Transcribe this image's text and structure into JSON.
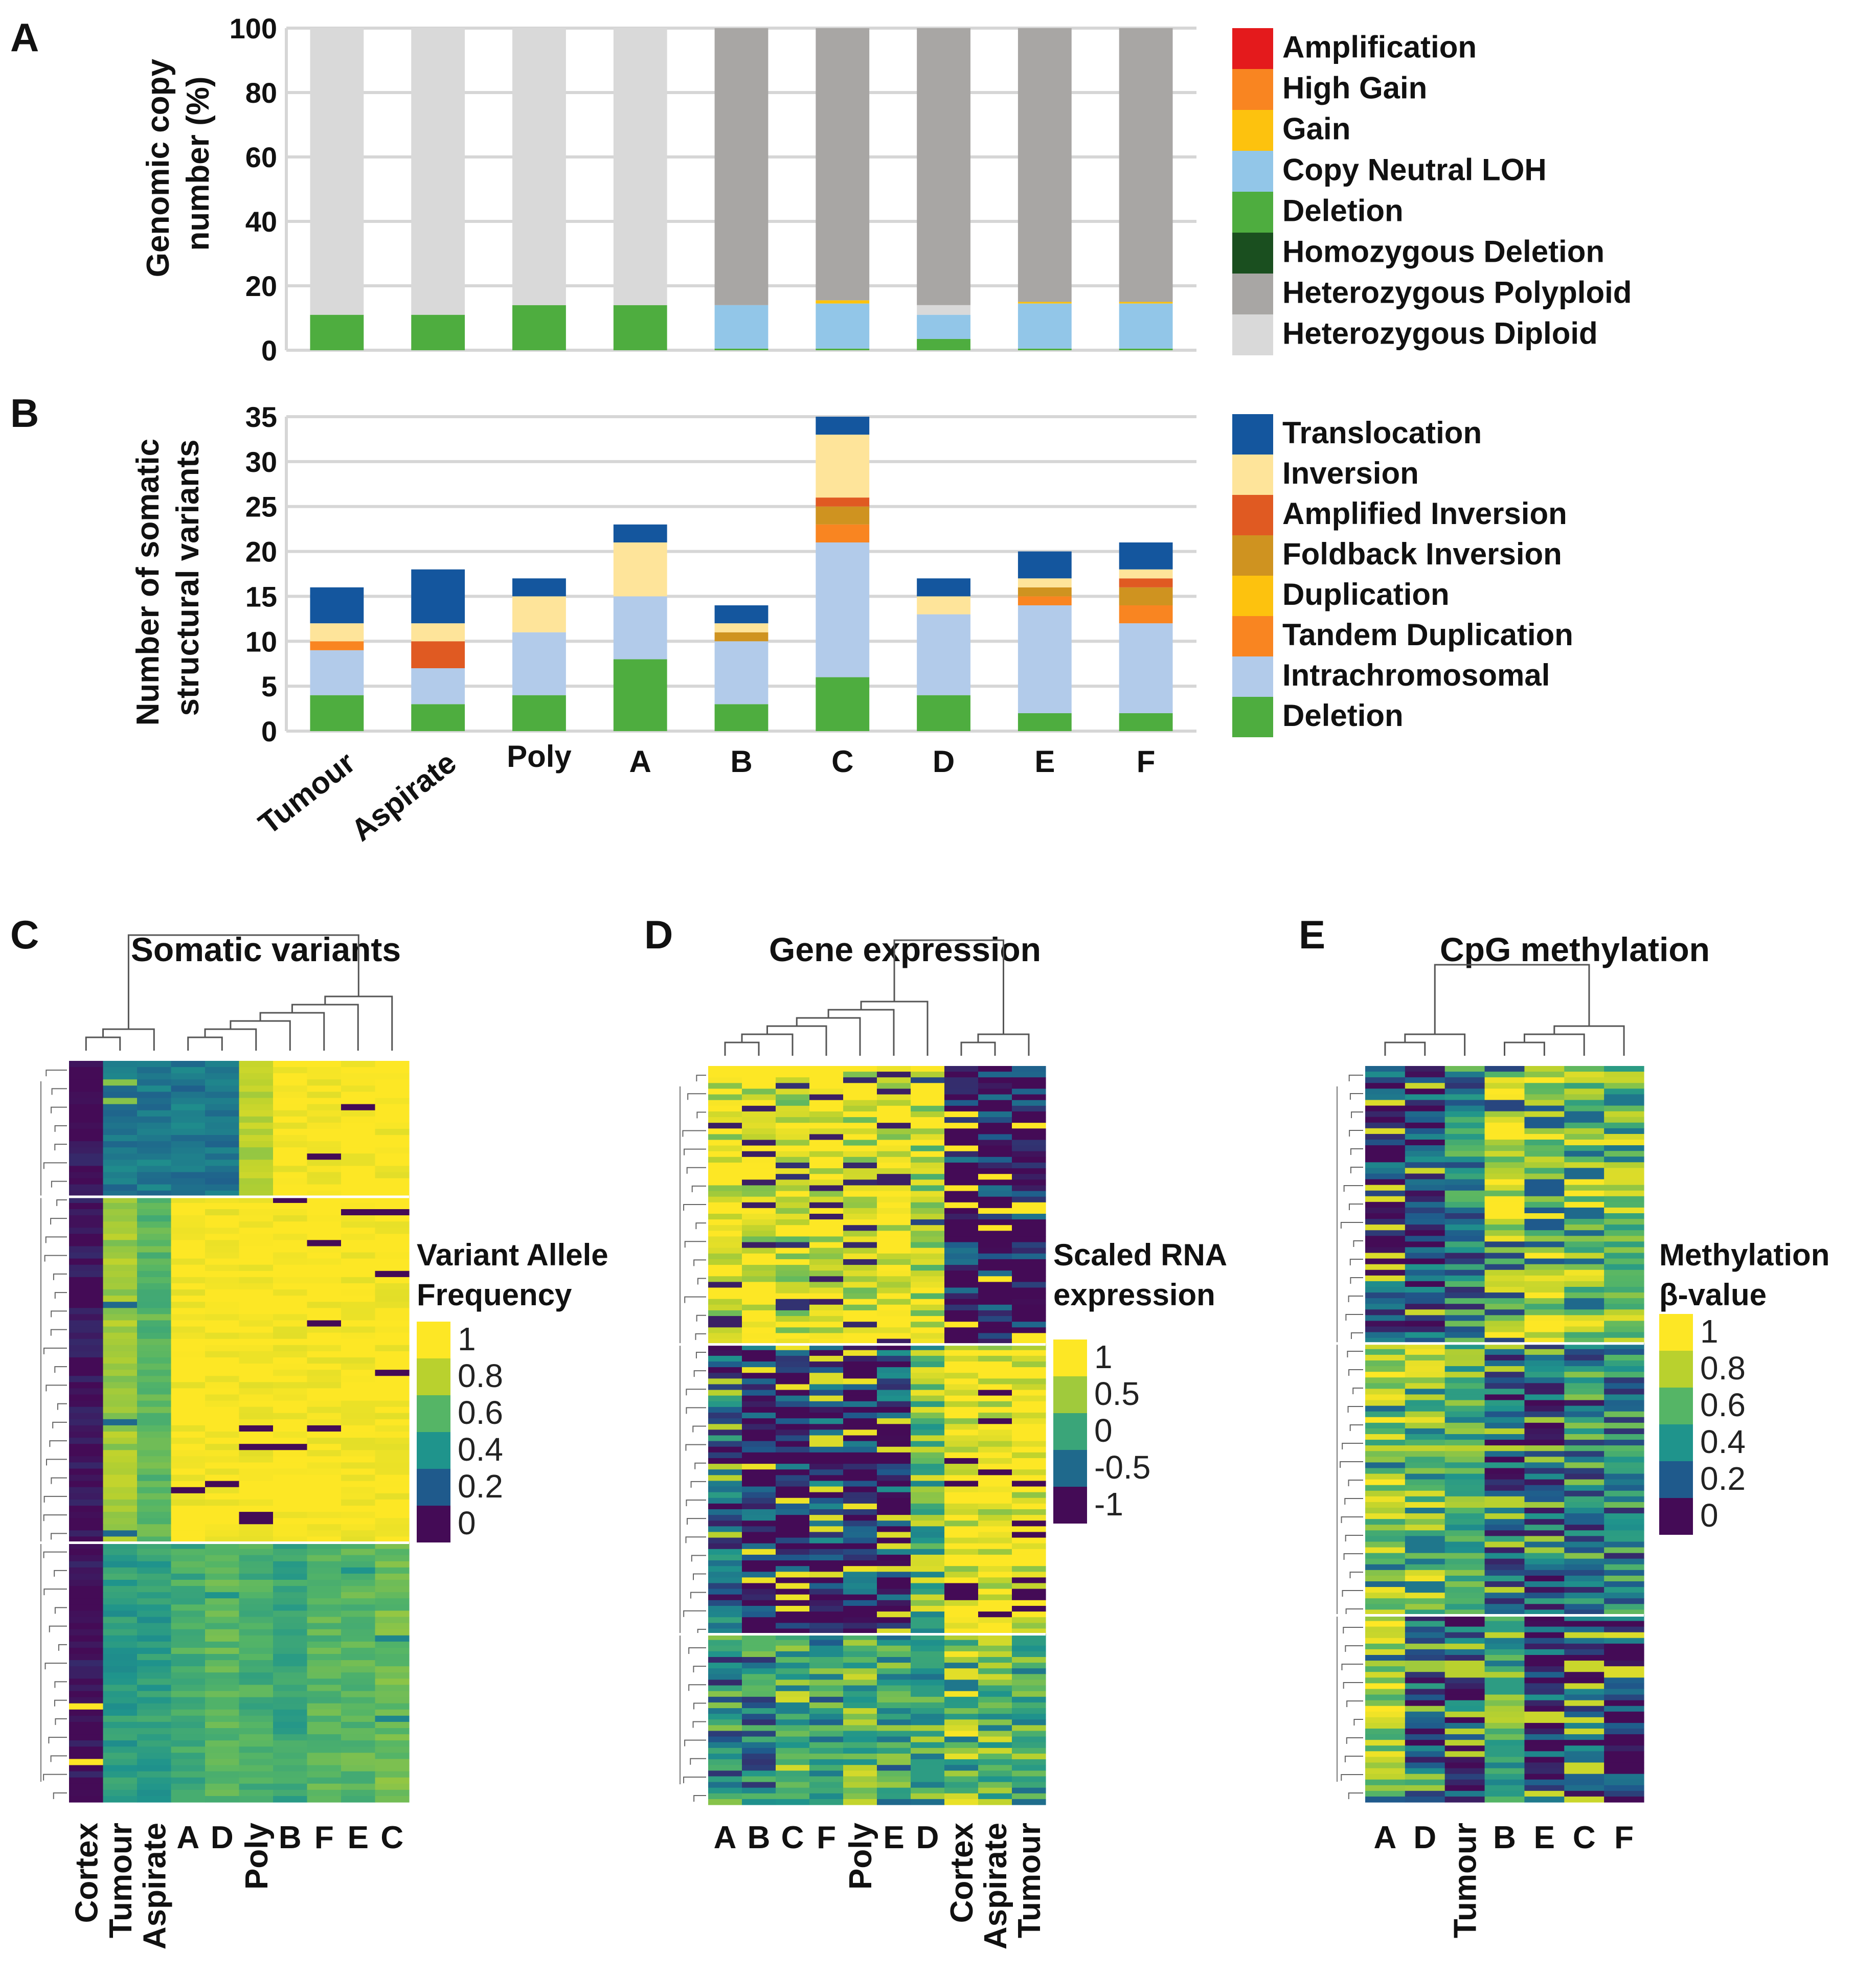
{
  "panel_labels": [
    "A",
    "B",
    "C",
    "D",
    "E"
  ],
  "colors": {
    "amplification": "#e41a1c",
    "high_gain": "#f98521",
    "gain": "#fdc20e",
    "copy_neutral_loh": "#92c6e8",
    "deletion": "#4ead3f",
    "homozygous_deletion": "#1a4f1f",
    "heterozygous_polyploid": "#a8a6a4",
    "heterozygous_diploid": "#d9d9d9",
    "translocation": "#14569e",
    "inversion": "#fee49a",
    "amplified_inversion": "#e05a22",
    "foldback_inversion": "#cf9320",
    "duplication": "#fdc20e",
    "tandem_duplication": "#f98521",
    "intrachromosomal": "#b2cbea",
    "grid": "#d6d6d6"
  },
  "chart_data": [
    {
      "type": "bar",
      "panel": "A",
      "stacked": true,
      "title": "",
      "xlabel": "",
      "ylabel": "Genomic copy number (%)",
      "ylim": [
        0,
        100
      ],
      "yticks": [
        0,
        20,
        40,
        60,
        80,
        100
      ],
      "grid": true,
      "legend_position": "right",
      "categories": [
        "Tumour",
        "Aspirate",
        "Poly",
        "A",
        "B",
        "C",
        "D",
        "E",
        "F"
      ],
      "series": [
        {
          "name": "Deletion",
          "color_key": "deletion",
          "values": [
            11,
            11,
            14,
            14,
            0.5,
            0.5,
            3.5,
            0.5,
            0.5
          ]
        },
        {
          "name": "Copy Neutral LOH",
          "color_key": "copy_neutral_loh",
          "values": [
            0,
            0,
            0,
            0,
            13.5,
            14,
            7.5,
            14,
            14
          ]
        },
        {
          "name": "Gain",
          "color_key": "gain",
          "values": [
            0,
            0,
            0,
            0,
            0,
            1,
            0,
            0.5,
            0.5
          ]
        },
        {
          "name": "Heterozygous Diploid",
          "color_key": "heterozygous_diploid",
          "values": [
            89,
            89,
            86,
            86,
            0,
            0,
            3,
            0,
            0
          ]
        },
        {
          "name": "Heterozygous Polyploid",
          "color_key": "heterozygous_polyploid",
          "values": [
            0,
            0,
            0,
            0,
            86,
            84.5,
            86,
            85,
            85
          ]
        }
      ],
      "legend": [
        "Amplification",
        "High Gain",
        "Gain",
        "Copy Neutral LOH",
        "Deletion",
        "Homozygous Deletion",
        "Heterozygous Polyploid",
        "Heterozygous Diploid"
      ],
      "legend_color_keys": [
        "amplification",
        "high_gain",
        "gain",
        "copy_neutral_loh",
        "deletion",
        "homozygous_deletion",
        "heterozygous_polyploid",
        "heterozygous_diploid"
      ]
    },
    {
      "type": "bar",
      "panel": "B",
      "stacked": true,
      "title": "",
      "xlabel": "",
      "ylabel": "Number of somatic structural variants",
      "ylim": [
        0,
        35
      ],
      "yticks": [
        0,
        5,
        10,
        15,
        20,
        25,
        30,
        35
      ],
      "grid": true,
      "legend_position": "right",
      "categories": [
        "Tumour",
        "Aspirate",
        "Poly",
        "A",
        "B",
        "C",
        "D",
        "E",
        "F"
      ],
      "series": [
        {
          "name": "Deletion",
          "color_key": "deletion",
          "values": [
            4,
            3,
            4,
            8,
            3,
            6,
            4,
            2,
            2
          ]
        },
        {
          "name": "Intrachromosomal",
          "color_key": "intrachromosomal",
          "values": [
            5,
            4,
            7,
            7,
            7,
            15,
            9,
            12,
            10
          ]
        },
        {
          "name": "Tandem Duplication",
          "color_key": "tandem_duplication",
          "values": [
            1,
            0,
            0,
            0,
            0,
            2,
            0,
            1,
            2
          ]
        },
        {
          "name": "Duplication",
          "color_key": "duplication",
          "values": [
            0,
            0,
            0,
            0,
            0,
            0,
            0,
            0,
            0
          ]
        },
        {
          "name": "Foldback Inversion",
          "color_key": "foldback_inversion",
          "values": [
            0,
            0,
            0,
            0,
            1,
            2,
            0,
            1,
            2
          ]
        },
        {
          "name": "Amplified Inversion",
          "color_key": "amplified_inversion",
          "values": [
            0,
            3,
            0,
            0,
            0,
            1,
            0,
            0,
            1
          ]
        },
        {
          "name": "Inversion",
          "color_key": "inversion",
          "values": [
            2,
            2,
            4,
            6,
            1,
            7,
            2,
            1,
            1
          ]
        },
        {
          "name": "Translocation",
          "color_key": "translocation",
          "values": [
            4,
            6,
            2,
            2,
            2,
            2,
            2,
            3,
            3
          ]
        }
      ],
      "legend": [
        "Translocation",
        "Inversion",
        "Amplified Inversion",
        "Foldback Inversion",
        "Duplication",
        "Tandem Duplication",
        "Intrachromosomal",
        "Deletion"
      ],
      "legend_color_keys": [
        "translocation",
        "inversion",
        "amplified_inversion",
        "foldback_inversion",
        "duplication",
        "tandem_duplication",
        "intrachromosomal",
        "deletion"
      ]
    },
    {
      "type": "heatmap",
      "panel": "C",
      "title": "Somatic variants",
      "columns": [
        "Cortex",
        "Tumour",
        "Aspirate",
        "A",
        "D",
        "Poly",
        "B",
        "F",
        "E",
        "C"
      ],
      "row_clusters": [
        {
          "fraction": 0.18,
          "column_values": [
            0,
            0.3,
            0.3,
            0.3,
            0.3,
            0.8,
            1,
            1,
            1,
            1
          ]
        },
        {
          "fraction": 0.47,
          "column_values": [
            0,
            0.75,
            0.6,
            1,
            1,
            1,
            1,
            1,
            1,
            1
          ]
        },
        {
          "fraction": 0.35,
          "column_values": [
            0,
            0.45,
            0.45,
            0.55,
            0.6,
            0.55,
            0.5,
            0.6,
            0.6,
            0.65
          ]
        }
      ],
      "colorbar_title": [
        "Variant Allele",
        "Frequency"
      ],
      "colorbar_ticks": [
        "1",
        "0.8",
        "0.6",
        "0.4",
        "0.2",
        "0"
      ],
      "colorbar_range": [
        0,
        1
      ]
    },
    {
      "type": "heatmap",
      "panel": "D",
      "title": "Gene expression",
      "columns": [
        "A",
        "B",
        "C",
        "F",
        "Poly",
        "E",
        "D",
        "Cortex",
        "Aspirate",
        "Tumour"
      ],
      "row_clusters": [
        {
          "fraction": 0.38,
          "column_values": [
            0.9,
            0.9,
            0.8,
            0.9,
            0.85,
            0.9,
            0.7,
            -1,
            -1,
            -1
          ]
        },
        {
          "fraction": 0.39,
          "column_values": [
            -0.6,
            -0.9,
            -0.9,
            -0.8,
            -0.9,
            -0.8,
            0.3,
            1,
            1,
            1
          ]
        },
        {
          "fraction": 0.23,
          "column_values": [
            -0.4,
            -0.2,
            0.2,
            -0.1,
            0.2,
            -0.1,
            0.1,
            0.4,
            0.2,
            0.1
          ]
        }
      ],
      "colorbar_title": [
        "Scaled RNA",
        "expression"
      ],
      "colorbar_ticks": [
        "1",
        "0.5",
        "0",
        "-0.5",
        "-1"
      ],
      "colorbar_range": [
        -1,
        1
      ]
    },
    {
      "type": "heatmap",
      "panel": "E",
      "title": "CpG methylation",
      "columns": [
        "A",
        "D",
        "Tumour",
        "B",
        "E",
        "C",
        "F"
      ],
      "row_clusters": [
        {
          "fraction": 0.38,
          "column_values": [
            0.1,
            0.15,
            0.35,
            0.85,
            0.8,
            0.75,
            0.7
          ]
        },
        {
          "fraction": 0.37,
          "column_values": [
            0.75,
            0.7,
            0.55,
            0.2,
            0.25,
            0.3,
            0.35
          ]
        },
        {
          "fraction": 0.25,
          "column_values": [
            0.8,
            0.25,
            0.2,
            0.55,
            0.15,
            0.15,
            0.1
          ]
        }
      ],
      "colorbar_title": [
        "Methylation",
        "β-value"
      ],
      "colorbar_ticks": [
        "1",
        "0.8",
        "0.6",
        "0.4",
        "0.2",
        "0"
      ],
      "colorbar_range": [
        0,
        1
      ]
    }
  ]
}
